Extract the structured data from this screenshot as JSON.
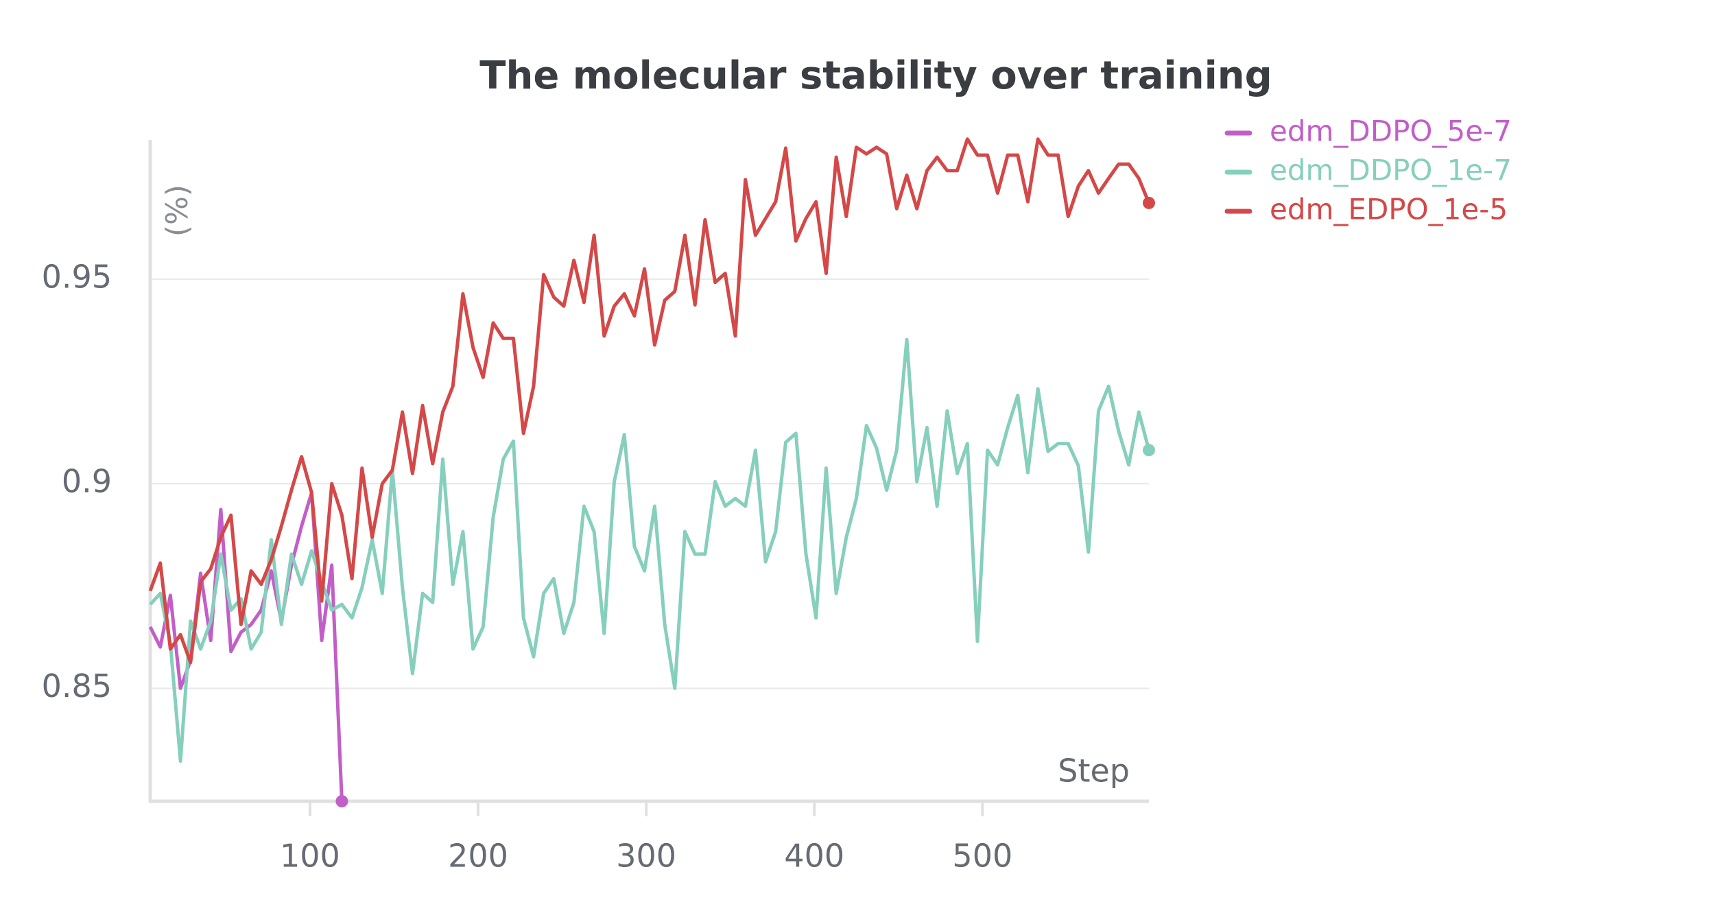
{
  "chart_data": {
    "type": "line",
    "title": "The molecular stability over training",
    "x_label": "Step",
    "y_label": "(%)",
    "x": [
      5,
      11,
      17,
      23,
      29,
      35,
      41,
      47,
      53,
      59,
      65,
      71,
      77,
      83,
      89,
      95,
      101,
      107,
      113,
      119,
      125,
      131,
      137,
      143,
      149,
      155,
      161,
      167,
      173,
      179,
      185,
      191,
      197,
      203,
      209,
      215,
      221,
      227,
      233,
      239,
      245,
      251,
      257,
      263,
      269,
      275,
      281,
      287,
      293,
      299,
      305,
      311,
      317,
      323,
      329,
      335,
      341,
      347,
      353,
      359,
      365,
      371,
      377,
      383,
      389,
      395,
      401,
      407,
      413,
      419,
      425,
      431,
      437,
      443,
      449,
      455,
      461,
      467,
      473,
      479,
      485,
      491,
      497,
      503,
      509,
      515,
      521,
      527,
      533,
      539,
      545,
      551,
      557,
      563,
      569,
      575,
      581,
      587,
      593,
      599
    ],
    "xlim": [
      5,
      599
    ],
    "xticks": [
      100,
      200,
      300,
      400,
      500
    ],
    "ylim": [
      0.8224,
      0.984
    ],
    "yticks": [
      0.85,
      0.9,
      0.95
    ],
    "grid": true,
    "series": [
      {
        "name": "edm_DDPO_5e-7",
        "color": "#c25ec8",
        "values": [
          0.865,
          0.8601,
          0.8727,
          0.85,
          0.8568,
          0.8781,
          0.8617,
          0.8937,
          0.859,
          0.8637,
          0.8656,
          0.8691,
          0.8787,
          0.8664,
          0.8801,
          0.8896,
          0.8978,
          0.8617,
          0.8801,
          0.8224,
          null,
          null,
          null,
          null,
          null,
          null,
          null,
          null,
          null,
          null,
          null,
          null,
          null,
          null,
          null,
          null,
          null,
          null,
          null,
          null,
          null,
          null,
          null,
          null,
          null,
          null,
          null,
          null,
          null,
          null,
          null,
          null,
          null,
          null,
          null,
          null,
          null,
          null,
          null,
          null,
          null,
          null,
          null,
          null,
          null,
          null,
          null,
          null,
          null,
          null,
          null,
          null,
          null,
          null,
          null,
          null,
          null,
          null,
          null,
          null,
          null,
          null,
          null,
          null,
          null,
          null,
          null,
          null,
          null,
          null,
          null,
          null,
          null,
          null,
          null,
          null,
          null,
          null,
          null,
          null
        ]
      },
      {
        "name": "edm_DDPO_1e-7",
        "color": "#86cfbd",
        "values": [
          0.8705,
          0.8732,
          0.8609,
          0.8322,
          0.8664,
          0.8596,
          0.8664,
          0.8828,
          0.8691,
          0.8719,
          0.8596,
          0.8637,
          0.8863,
          0.8656,
          0.8828,
          0.8754,
          0.8836,
          0.876,
          0.8691,
          0.8705,
          0.8672,
          0.8746,
          0.8863,
          0.8732,
          0.9033,
          0.8746,
          0.8536,
          0.8732,
          0.871,
          0.906,
          0.8754,
          0.8883,
          0.8596,
          0.865,
          0.8918,
          0.906,
          0.9104,
          0.8672,
          0.8577,
          0.8732,
          0.8768,
          0.8634,
          0.871,
          0.8945,
          0.8883,
          0.8634,
          0.9005,
          0.912,
          0.8847,
          0.8787,
          0.8945,
          0.8656,
          0.85,
          0.8883,
          0.8828,
          0.8828,
          0.9005,
          0.8945,
          0.8964,
          0.8945,
          0.9082,
          0.8809,
          0.8883,
          0.9101,
          0.9123,
          0.8828,
          0.8672,
          0.9038,
          0.8732,
          0.8869,
          0.8964,
          0.9142,
          0.9087,
          0.8984,
          0.9082,
          0.9352,
          0.9005,
          0.9137,
          0.8945,
          0.9178,
          0.9025,
          0.9098,
          0.8615,
          0.9082,
          0.9046,
          0.9137,
          0.9216,
          0.9027,
          0.9232,
          0.9079,
          0.9098,
          0.9098,
          0.9044,
          0.8833,
          0.9178,
          0.9238,
          0.9128,
          0.9046,
          0.9175,
          0.9082
        ]
      },
      {
        "name": "edm_EDPO_1e-5",
        "color": "#d44848",
        "values": [
          0.8738,
          0.8806,
          0.8596,
          0.8631,
          0.8563,
          0.876,
          0.8792,
          0.8869,
          0.8923,
          0.8656,
          0.8787,
          0.8754,
          0.8814,
          0.8896,
          0.8984,
          0.9066,
          0.8978,
          0.8713,
          0.9,
          0.8923,
          0.8768,
          0.9038,
          0.8869,
          0.9,
          0.9033,
          0.9175,
          0.9025,
          0.9191,
          0.9049,
          0.9175,
          0.9238,
          0.9464,
          0.9333,
          0.926,
          0.9393,
          0.9355,
          0.9355,
          0.9123,
          0.9238,
          0.9511,
          0.9456,
          0.9434,
          0.9546,
          0.9443,
          0.9607,
          0.9361,
          0.9434,
          0.9464,
          0.941,
          0.9525,
          0.9339,
          0.9448,
          0.947,
          0.9607,
          0.9437,
          0.9645,
          0.9492,
          0.9514,
          0.9361,
          0.9743,
          0.9607,
          0.9648,
          0.9689,
          0.982,
          0.9593,
          0.9648,
          0.9689,
          0.9514,
          0.9798,
          0.9653,
          0.9822,
          0.9806,
          0.9822,
          0.9806,
          0.9672,
          0.9754,
          0.9672,
          0.9765,
          0.9798,
          0.9765,
          0.9765,
          0.9842,
          0.9803,
          0.9803,
          0.971,
          0.9803,
          0.9803,
          0.9689,
          0.9842,
          0.9803,
          0.9803,
          0.9653,
          0.9727,
          0.9765,
          0.971,
          0.9746,
          0.9781,
          0.9781,
          0.9746,
          0.9686
        ]
      }
    ]
  }
}
